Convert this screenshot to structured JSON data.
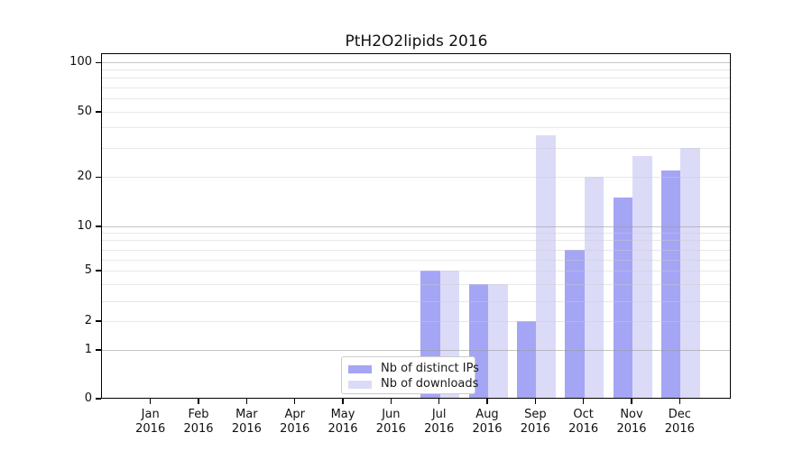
{
  "figure": {
    "title": "PtH2O2lipids 2016"
  },
  "legend": {
    "items": [
      {
        "label": "Nb of distinct IPs",
        "color": "#a5a5f5"
      },
      {
        "label": "Nb of downloads",
        "color": "#dbdbf8"
      }
    ]
  },
  "chart_data": {
    "type": "bar",
    "title": "PtH2O2lipids 2016",
    "categories": [
      "Jan 2016",
      "Feb 2016",
      "Mar 2016",
      "Apr 2016",
      "May 2016",
      "Jun 2016",
      "Jul 2016",
      "Aug 2016",
      "Sep 2016",
      "Oct 2016",
      "Nov 2016",
      "Dec 2016"
    ],
    "series": [
      {
        "name": "Nb of distinct IPs",
        "color": "#a5a5f5",
        "values": [
          0,
          0,
          0,
          0,
          0,
          0,
          5,
          4,
          2,
          7,
          15,
          22
        ]
      },
      {
        "name": "Nb of downloads",
        "color": "#dbdbf8",
        "values": [
          0,
          0,
          0,
          0,
          0,
          0,
          5,
          4,
          36,
          20,
          27,
          30
        ]
      }
    ],
    "xlabel": "",
    "ylabel": "",
    "yticks": [
      0,
      1,
      2,
      5,
      10,
      20,
      50,
      100
    ],
    "ylim": [
      0,
      100
    ],
    "yscale": "log-like (linear 0-1, logarithmic 1-100)",
    "grid": "horizontal, major at 1/10/100 and minor at 2-9,20-90",
    "legend_position": "lower center inside plot"
  }
}
